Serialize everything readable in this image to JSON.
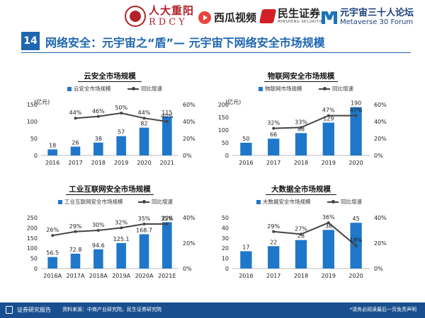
{
  "header": {
    "logo_rdcy_cn": "人大重阳",
    "logo_rdcy_en": "RDCY",
    "logo_xigua": "西瓜视频",
    "logo_minsheng_cn": "民生证券",
    "logo_minsheng_en": "MINSHENG SECURITIES",
    "logo_meta_cn": "元宇宙三十人论坛",
    "logo_meta_en": "Metaverse 30 Forum"
  },
  "slide": {
    "number": "14",
    "title": "网络安全：元宇宙之“盾”— 元宇宙下网络安全市场规模"
  },
  "colors": {
    "bar": "#1f77c9",
    "line": "#444444",
    "brand": "#1e66b0",
    "footer": "#1a4f8f"
  },
  "chart_data": [
    {
      "type": "bar",
      "title": "云安全市场规模",
      "unit": "(亿元)",
      "categories": [
        "2016",
        "2017",
        "2018",
        "2019",
        "2020",
        "2021"
      ],
      "series": [
        {
          "name": "云安全市场规模",
          "type": "bar",
          "values": [
            18,
            26,
            38,
            57,
            82,
            115
          ],
          "labels": [
            "18",
            "26",
            "38",
            "57",
            "82",
            "115"
          ]
        },
        {
          "name": "同比增速",
          "type": "line",
          "axis": "right",
          "values": [
            null,
            44,
            46,
            50,
            44,
            40
          ],
          "labels": [
            "",
            "44%",
            "46%",
            "50%",
            "44%",
            "40%"
          ]
        }
      ],
      "ylim": [
        0,
        150
      ],
      "yticks": [
        "0",
        "50",
        "100",
        "150"
      ],
      "y2lim": [
        0,
        60
      ],
      "y2ticks": [
        "0%",
        "20%",
        "40%",
        "60%"
      ]
    },
    {
      "type": "bar",
      "title": "物联网安全市场规模",
      "unit": "(亿元)",
      "categories": [
        "2016",
        "2017",
        "2018",
        "2019",
        "2020"
      ],
      "series": [
        {
          "name": "物联网市场规模",
          "type": "bar",
          "values": [
            50,
            66,
            88,
            129,
            190
          ],
          "labels": [
            "50",
            "66",
            "88",
            "129",
            "190"
          ]
        },
        {
          "name": "同比增速",
          "type": "line",
          "axis": "right",
          "values": [
            null,
            32,
            33,
            47,
            47
          ],
          "labels": [
            "",
            "32%",
            "33%",
            "47%",
            "47%"
          ]
        }
      ],
      "ylim": [
        0,
        200
      ],
      "yticks": [
        "0",
        "50",
        "100",
        "150",
        "200"
      ],
      "y2lim": [
        0,
        60
      ],
      "y2ticks": [
        "0%",
        "20%",
        "40%",
        "60%"
      ]
    },
    {
      "type": "bar",
      "title": "工业互联网安全市场规模",
      "unit": "",
      "categories": [
        "2016A",
        "2017A",
        "2018A",
        "2019A",
        "2020A",
        "2021E"
      ],
      "series": [
        {
          "name": "工业互联网安全市场规模",
          "type": "bar",
          "values": [
            56.5,
            72.8,
            94.6,
            125.1,
            168.7,
            228
          ],
          "labels": [
            "56.5",
            "72.8",
            "94.6",
            "125.1",
            "168.7",
            "228"
          ]
        },
        {
          "name": "同比增速",
          "type": "line",
          "axis": "right",
          "values": [
            26,
            29,
            30,
            32,
            35,
            35
          ],
          "labels": [
            "26%",
            "29%",
            "30%",
            "32%",
            "35%",
            "35%"
          ]
        }
      ],
      "ylim": [
        0,
        250
      ],
      "yticks": [
        "0",
        "50",
        "100",
        "150",
        "200",
        "250"
      ],
      "y2lim": [
        0,
        40
      ],
      "y2ticks": [
        "0%",
        "20%",
        "40%"
      ]
    },
    {
      "type": "bar",
      "title": "大数据全市场规模",
      "unit": "",
      "categories": [
        "2016",
        "2017",
        "2018",
        "2019",
        "2020"
      ],
      "series": [
        {
          "name": "大数据安全市场规模",
          "type": "bar",
          "values": [
            17,
            22,
            28,
            38,
            45
          ],
          "labels": [
            "17",
            "22",
            "28",
            "38",
            "45"
          ]
        },
        {
          "name": "同比增速",
          "type": "line",
          "axis": "right",
          "values": [
            null,
            29,
            27,
            36,
            18
          ],
          "labels": [
            "",
            "29%",
            "27%",
            "36%",
            "18%"
          ]
        }
      ],
      "ylim": [
        0,
        50
      ],
      "yticks": [
        "0",
        "10",
        "20",
        "30",
        "40",
        "50"
      ],
      "y2lim": [
        0,
        40
      ],
      "y2ticks": [
        "0%",
        "20%",
        "40%"
      ]
    }
  ],
  "footer": {
    "report_label": "证券研究报告",
    "source": "资料来源：中商产业研究院，民生证券研究院",
    "disclaimer": "*请务必阅读最后一页免责声明"
  }
}
